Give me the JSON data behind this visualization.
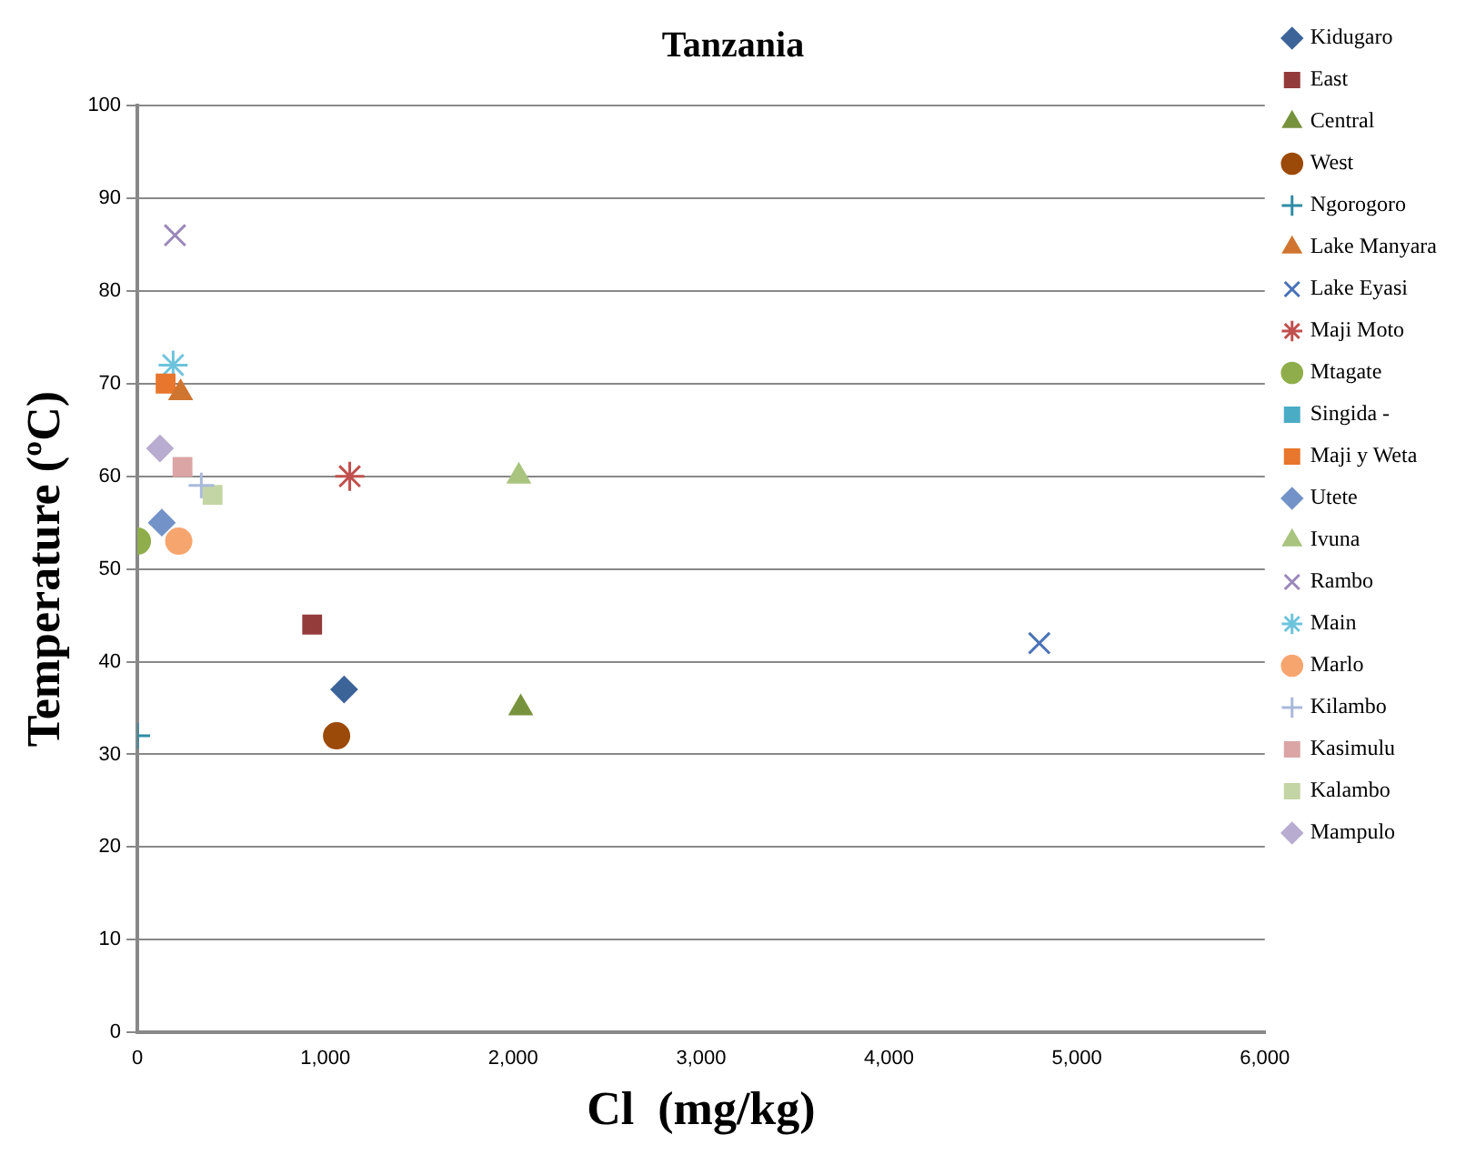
{
  "chart_data": {
    "type": "scatter",
    "title": "Tanzania",
    "xlabel": "Cl  (mg/kg)",
    "ylabel": "Temperature (ºC)",
    "xlim": [
      0,
      6000
    ],
    "xticks": [
      0,
      {
        "value": 1000,
        "label": "1,000"
      },
      {
        "value": 2000,
        "label": "2,000"
      },
      {
        "value": 3000,
        "label": "3,000"
      },
      {
        "value": 4000,
        "label": "4,000"
      },
      {
        "value": 5000,
        "label": "5,000"
      },
      {
        "value": 6000,
        "label": "6,000"
      }
    ],
    "ylim": [
      0,
      100
    ],
    "yticks": [
      0,
      10,
      20,
      30,
      40,
      50,
      60,
      70,
      80,
      90,
      100
    ],
    "grid": "y",
    "legend": "right",
    "series": [
      {
        "name": "Kidugaro",
        "color": "#3c6499",
        "marker": "diamond",
        "x": [
          1100
        ],
        "values": [
          37
        ]
      },
      {
        "name": "East",
        "color": "#943b3b",
        "marker": "square",
        "x": [
          930
        ],
        "values": [
          44
        ]
      },
      {
        "name": "Central",
        "color": "#77923c",
        "marker": "triangle",
        "x": [
          2040
        ],
        "values": [
          35
        ]
      },
      {
        "name": "West",
        "color": "#9c4a09",
        "marker": "circle",
        "x": [
          1060
        ],
        "values": [
          32
        ]
      },
      {
        "name": "Ngorogoro",
        "color": "#2f8ca5",
        "marker": "plus",
        "x": [
          0
        ],
        "values": [
          32
        ]
      },
      {
        "name": "Lake Manyara",
        "color": "#d07530",
        "marker": "triangle",
        "x": [
          230
        ],
        "values": [
          69
        ]
      },
      {
        "name": "Lake Eyasi",
        "color": "#4a72b8",
        "marker": "x",
        "x": [
          4800
        ],
        "values": [
          42
        ]
      },
      {
        "name": "Maji Moto",
        "color": "#c0504d",
        "marker": "cross",
        "x": [
          1130
        ],
        "values": [
          60
        ]
      },
      {
        "name": "Mtagate",
        "color": "#8fae4b",
        "marker": "circle",
        "x": [
          0
        ],
        "values": [
          53
        ]
      },
      {
        "name": "Singida -",
        "color": "#4bacc6",
        "marker": "square",
        "x": [
          null
        ],
        "values": [
          null
        ]
      },
      {
        "name": "Maji y Weta",
        "color": "#e8762c",
        "marker": "square",
        "x": [
          150
        ],
        "values": [
          70
        ]
      },
      {
        "name": "Utete",
        "color": "#7393c8",
        "marker": "diamond",
        "x": [
          130
        ],
        "values": [
          55
        ]
      },
      {
        "name": "Ivuna",
        "color": "#a9c47f",
        "marker": "triangle",
        "x": [
          2030
        ],
        "values": [
          60
        ]
      },
      {
        "name": "Rambo",
        "color": "#9b88ba",
        "marker": "x",
        "x": [
          200
        ],
        "values": [
          86
        ]
      },
      {
        "name": "Main",
        "color": "#6ec3dc",
        "marker": "cross",
        "x": [
          190
        ],
        "values": [
          72
        ]
      },
      {
        "name": "Marlo",
        "color": "#f7a56f",
        "marker": "circle",
        "x": [
          220
        ],
        "values": [
          53
        ]
      },
      {
        "name": "Kilambo",
        "color": "#a9b9dc",
        "marker": "plus",
        "x": [
          340
        ],
        "values": [
          59
        ]
      },
      {
        "name": "Kasimulu",
        "color": "#dba5a5",
        "marker": "square",
        "x": [
          240
        ],
        "values": [
          61
        ]
      },
      {
        "name": "Kalambo",
        "color": "#c3d5a4",
        "marker": "square",
        "x": [
          400
        ],
        "values": [
          58
        ]
      },
      {
        "name": "Mampulo",
        "color": "#b8acd0",
        "marker": "diamond",
        "x": [
          120
        ],
        "values": [
          63
        ]
      }
    ]
  }
}
